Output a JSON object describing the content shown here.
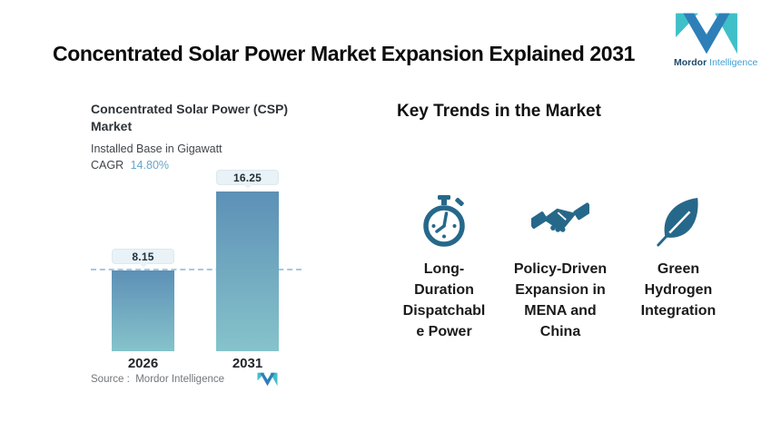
{
  "page": {
    "title": "Concentrated Solar Power Market Expansion Explained 2031"
  },
  "brand": {
    "name_primary": "Mordor",
    "name_secondary": "Intelligence"
  },
  "chart_data": {
    "type": "bar",
    "title": "Concentrated Solar Power (CSP) Market",
    "subtitle": "Installed Base in Gigawatt",
    "cagr_label": "CAGR",
    "cagr_value": "14.80%",
    "categories": [
      "2026",
      "2031"
    ],
    "values": [
      8.15,
      16.25
    ],
    "value_labels": [
      "8.15",
      "16.25"
    ],
    "unit": "Gigawatt",
    "ylim": [
      0,
      18.6
    ],
    "reference_line_value": 8.15,
    "grid": "off",
    "legend": "none",
    "bar_gradient": [
      "#5d90b6",
      "#86c3cb"
    ],
    "source_label": "Source :  Mordor Intelligence"
  },
  "trends": {
    "heading": "Key Trends in the Market",
    "icon_color": "#26688a",
    "items": [
      {
        "icon": "stopwatch-icon",
        "label": "Long-\nDuration\nDispatchabl\ne Power"
      },
      {
        "icon": "handshake-icon",
        "label": "Policy-Driven\nExpansion in\nMENA and\nChina"
      },
      {
        "icon": "leaf-icon",
        "label": "Green\nHydrogen\nIntegration"
      }
    ]
  },
  "colors": {
    "accent_blue": "#2e7fb8",
    "accent_teal": "#3fc0c8",
    "brand_text_dark": "#1d4a6e",
    "brand_text_light": "#41a0d4",
    "cagr_value": "#68a5ca",
    "dashed_line": "#aac7e0",
    "pill_bg": "#e9f2f6"
  }
}
